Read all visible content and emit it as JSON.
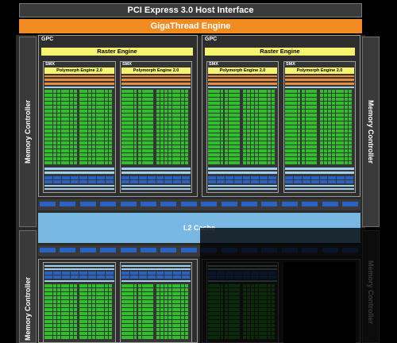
{
  "host_interface": {
    "label": "PCI Express 3.0 Host Interface"
  },
  "thread_engine": {
    "label": "GigaThread Engine"
  },
  "memory_controller": {
    "left_label": "Memory Controller",
    "right_label": "Memory Controller"
  },
  "gpc": {
    "label": "GPC",
    "raster_label": "Raster Engine"
  },
  "smx": {
    "label": "SMX",
    "polymorph_label": "Polymorph Engine 2.0"
  },
  "l2": {
    "label": "L2 Cache"
  },
  "colors": {
    "core": "#2fbf2a",
    "raster": "#f6f371",
    "giga": "#f28c22",
    "l2": "#78b8e3",
    "blue": "#2a62c4"
  }
}
